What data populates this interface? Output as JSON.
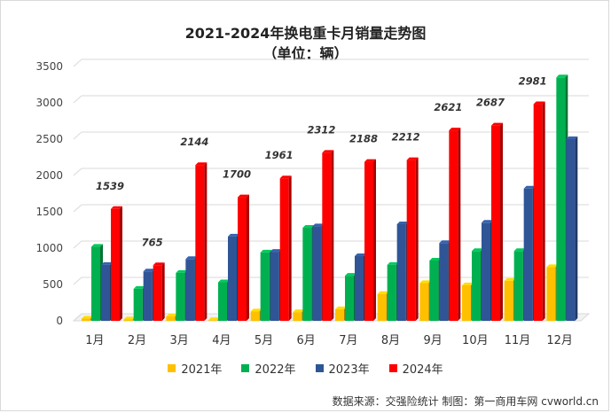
{
  "chart_data": {
    "type": "bar",
    "title": "2021-2024年换电重卡月销量走势图",
    "subtitle": "（单位：辆）",
    "categories": [
      "1月",
      "2月",
      "3月",
      "4月",
      "5月",
      "6月",
      "7月",
      "8月",
      "9月",
      "10月",
      "11月",
      "12月"
    ],
    "series": [
      {
        "name": "2021年",
        "color": "#ffc000",
        "values": [
          30,
          20,
          60,
          10,
          130,
          120,
          160,
          370,
          520,
          490,
          550,
          740
        ]
      },
      {
        "name": "2022年",
        "color": "#00b050",
        "values": [
          1020,
          440,
          660,
          530,
          940,
          1280,
          620,
          770,
          830,
          960,
          960,
          3350
        ]
      },
      {
        "name": "2023年",
        "color": "#2f5597",
        "values": [
          770,
          680,
          850,
          1160,
          950,
          1300,
          890,
          1330,
          1070,
          1350,
          1820,
          2500
        ]
      },
      {
        "name": "2024年",
        "color": "#ff0000",
        "values": [
          1539,
          765,
          2144,
          1700,
          1961,
          2312,
          2188,
          2212,
          2621,
          2687,
          2981,
          null
        ]
      }
    ],
    "data_labels_series": "2024年",
    "yticks": [
      0,
      500,
      1000,
      1500,
      2000,
      2500,
      3000,
      3500
    ],
    "ylim": [
      0,
      3500
    ],
    "grid": true,
    "legend": "bottom"
  },
  "source": "数据来源：交强险统计 制图：第一商用车网 cvworld.cn"
}
